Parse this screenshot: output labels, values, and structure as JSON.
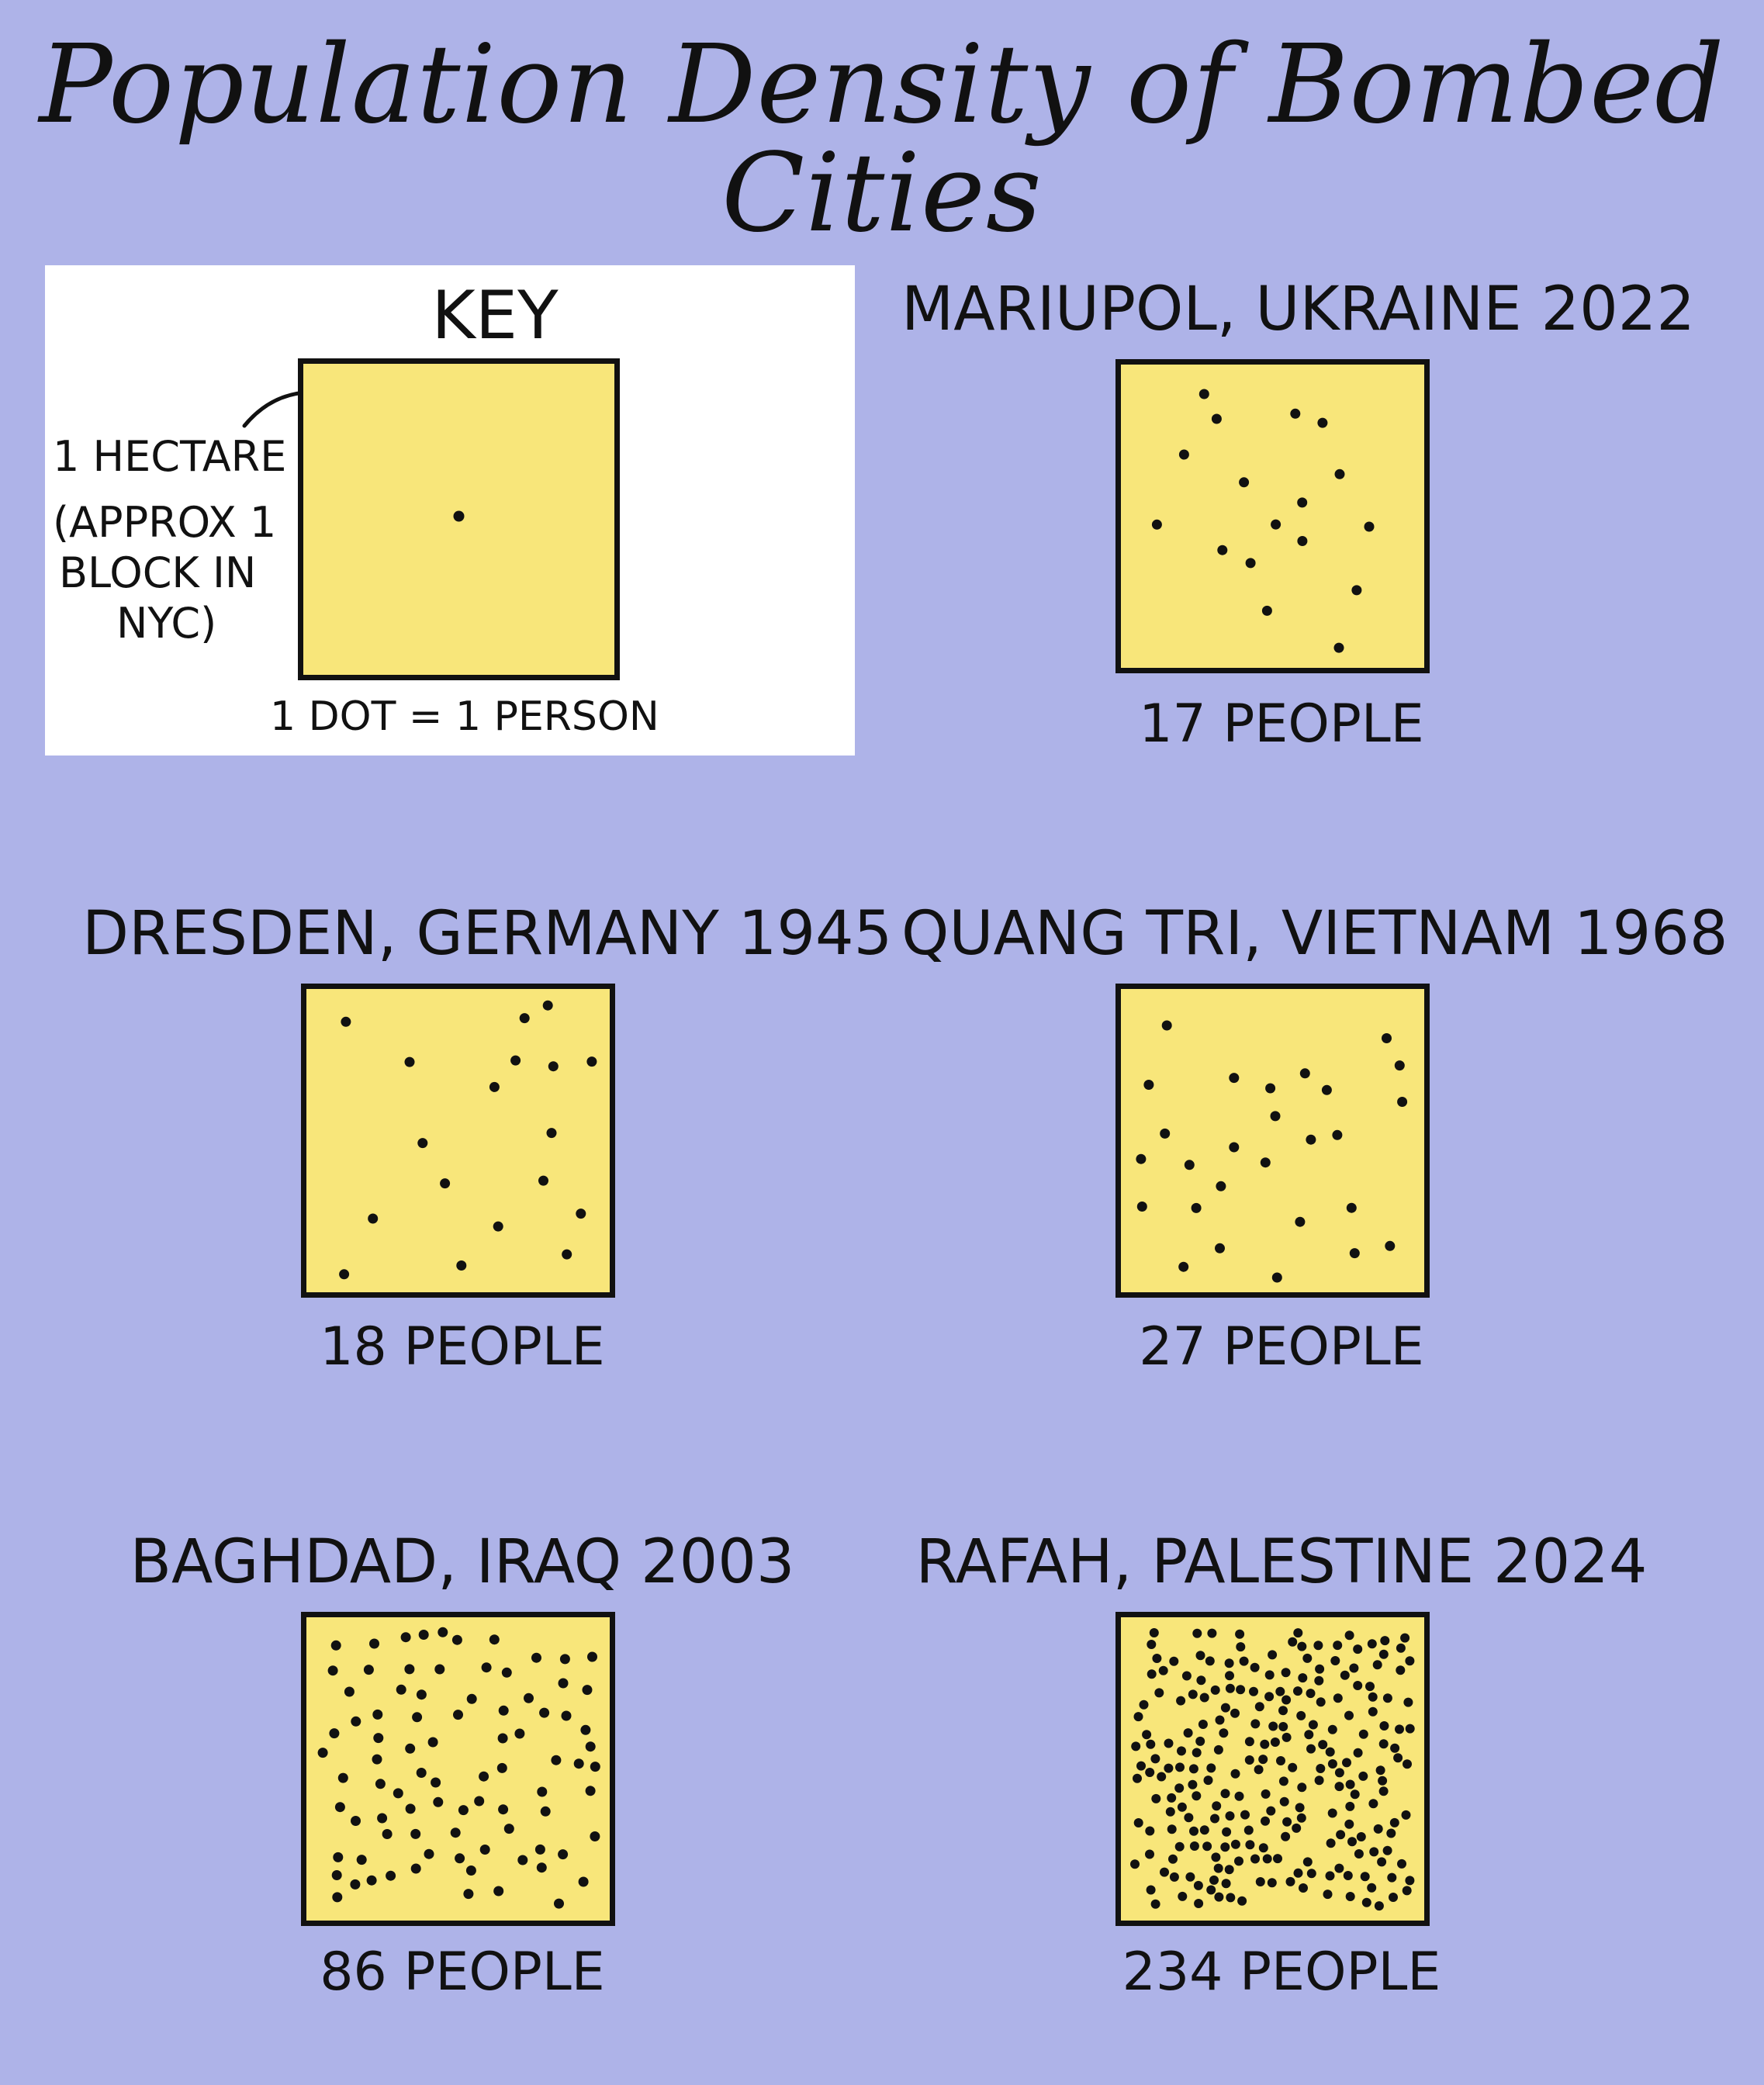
{
  "title": "Population Density of Bombed Cities",
  "key": {
    "title": "KEY",
    "side_label_1": "1 HECTARE",
    "side_label_2": "(APPROX 1",
    "side_label_3": "BLOCK IN",
    "side_label_4": "NYC)",
    "caption": "1 DOT = 1 PERSON",
    "dots": 1
  },
  "colors": {
    "background": "#aeb3e8",
    "square_fill": "#f8e67a",
    "ink": "#111111",
    "key_panel": "#ffffff"
  },
  "chart_data": {
    "type": "table",
    "unit": "people per hectare",
    "cities": [
      {
        "name": "MARIUPOL, UKRAINE 2022",
        "people": 17,
        "label": "17 PEOPLE"
      },
      {
        "name": "DRESDEN, GERMANY 1945",
        "people": 18,
        "label": "18 PEOPLE"
      },
      {
        "name": "QUANG TRI, VIETNAM 1968",
        "people": 27,
        "label": "27 PEOPLE"
      },
      {
        "name": "BAGHDAD, IRAQ 2003",
        "people": 86,
        "label": "86 PEOPLE"
      },
      {
        "name": "RAFAH, PALESTINE 2024",
        "people": 234,
        "label": "234 PEOPLE"
      }
    ]
  }
}
